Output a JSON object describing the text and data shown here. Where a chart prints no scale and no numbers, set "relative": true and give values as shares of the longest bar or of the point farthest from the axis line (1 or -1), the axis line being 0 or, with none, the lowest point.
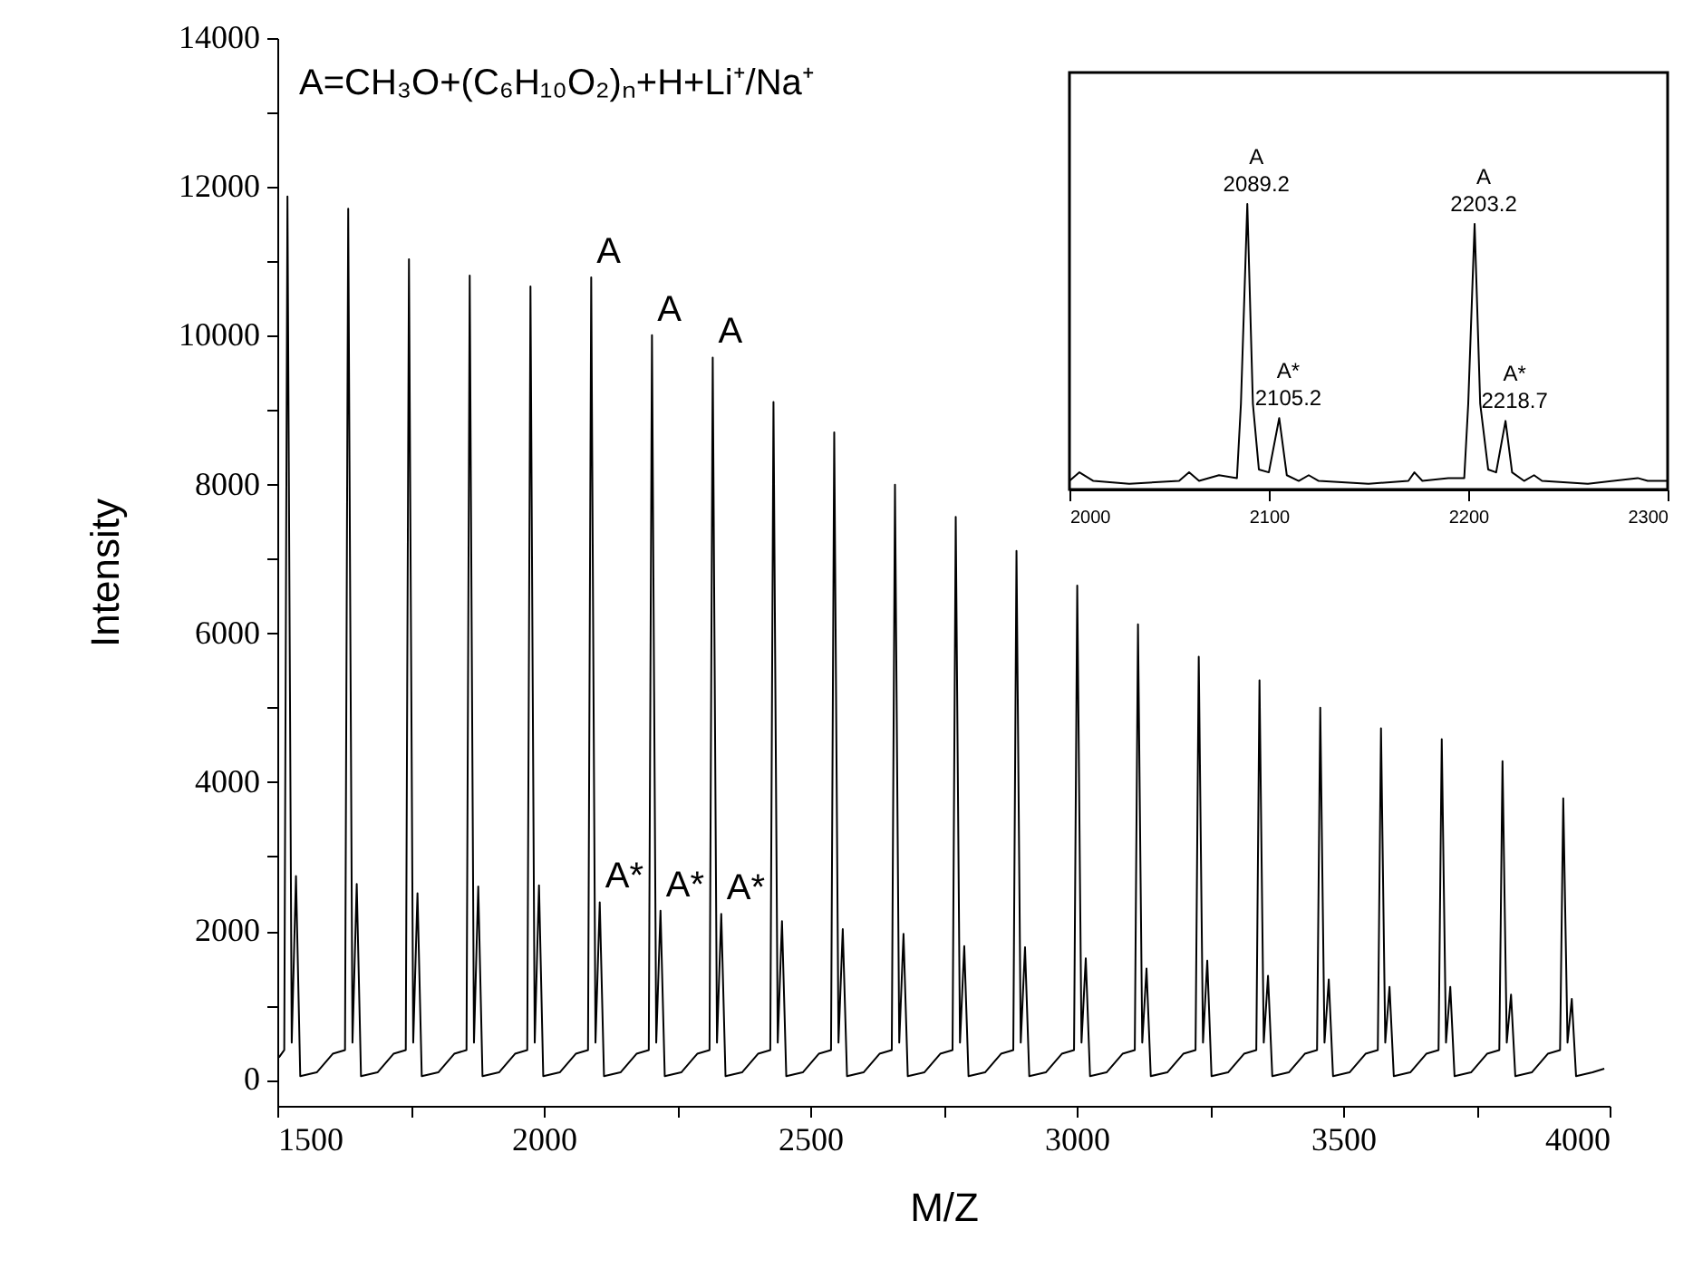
{
  "chart_data": [
    {
      "type": "line",
      "xlabel": "M/Z",
      "ylabel": "Intensity",
      "xlim": [
        1500,
        4000
      ],
      "ylim": [
        -350,
        14000
      ],
      "xticks": [
        1500,
        {
          "value": 1750,
          "label": null
        },
        2000,
        {
          "value": 2250,
          "label": null
        },
        2500,
        {
          "value": 2750,
          "label": null
        },
        3000,
        {
          "value": 3250,
          "label": null
        },
        3500,
        {
          "value": 3750,
          "label": null
        },
        4000
      ],
      "yticks": [
        0,
        {
          "value": 1000,
          "label": null
        },
        2000,
        {
          "value": 3000,
          "label": null
        },
        4000,
        {
          "value": 5000,
          "label": null
        },
        6000,
        {
          "value": 7000,
          "label": null
        },
        8000,
        {
          "value": 9000,
          "label": null
        },
        10000,
        {
          "value": 11000,
          "label": null
        },
        12000,
        {
          "value": 13000,
          "label": null
        },
        14000
      ],
      "x": [
        1503,
        1513,
        1519,
        1527,
        1535,
        1543,
        1574,
        1604,
        1627,
        1633,
        1641,
        1649,
        1657,
        1688,
        1718,
        1741,
        1747,
        1755,
        1763,
        1771,
        1802,
        1832,
        1855,
        1861,
        1869,
        1877,
        1885,
        1916,
        1946,
        1969,
        1975,
        1983,
        1991,
        1999,
        2030,
        2060,
        2083,
        2089,
        2097,
        2105,
        2113,
        2144,
        2174,
        2197,
        2203,
        2211,
        2219,
        2227,
        2258,
        2288,
        2311,
        2317,
        2325,
        2333,
        2341,
        2372,
        2402,
        2425,
        2431,
        2439,
        2447,
        2455,
        2486,
        2516,
        2539,
        2545,
        2553,
        2561,
        2569,
        2600,
        2630,
        2653,
        2659,
        2667,
        2675,
        2683,
        2714,
        2744,
        2767,
        2773,
        2781,
        2789,
        2797,
        2828,
        2858,
        2881,
        2887,
        2895,
        2903,
        2911,
        2942,
        2972,
        2995,
        3001,
        3009,
        3017,
        3025,
        3056,
        3086,
        3109,
        3115,
        3123,
        3131,
        3139,
        3170,
        3200,
        3223,
        3229,
        3237,
        3245,
        3253,
        3284,
        3314,
        3337,
        3343,
        3351,
        3359,
        3367,
        3398,
        3428,
        3451,
        3457,
        3465,
        3473,
        3481,
        3512,
        3542,
        3565,
        3571,
        3579,
        3587,
        3595,
        3626,
        3656,
        3679,
        3685,
        3693,
        3701,
        3709,
        3740,
        3770,
        3793,
        3799,
        3807,
        3815,
        3823,
        3854,
        3884,
        3907,
        3913,
        3921,
        3929,
        3937,
        3968,
        3990
      ],
      "series": [
        {
          "color": "#000000",
          "values": [
            300,
            400,
            11870,
            500,
            2737,
            50,
            100,
            350,
            400,
            11707,
            500,
            2630,
            50,
            100,
            350,
            400,
            11029,
            500,
            2507,
            50,
            100,
            350,
            400,
            10809,
            500,
            2598,
            50,
            100,
            350,
            400,
            10662,
            500,
            2614,
            50,
            100,
            350,
            400,
            10784,
            500,
            2386,
            50,
            100,
            350,
            400,
            10008,
            500,
            2271,
            50,
            100,
            350,
            400,
            9706,
            500,
            2230,
            50,
            100,
            350,
            400,
            9110,
            500,
            2132,
            50,
            100,
            350,
            400,
            8701,
            500,
            2026,
            50,
            100,
            350,
            400,
            7998,
            500,
            1961,
            50,
            100,
            350,
            400,
            7566,
            500,
            1797,
            50,
            100,
            350,
            400,
            7108,
            500,
            1781,
            50,
            100,
            350,
            400,
            6642,
            500,
            1634,
            50,
            100,
            350,
            400,
            6120,
            500,
            1495,
            50,
            100,
            350,
            400,
            5686,
            500,
            1601,
            50,
            100,
            350,
            400,
            5368,
            500,
            1397,
            50,
            100,
            350,
            400,
            5000,
            500,
            1348,
            50,
            100,
            350,
            400,
            4723,
            500,
            1250,
            50,
            100,
            350,
            400,
            4576,
            500,
            1250,
            50,
            100,
            350,
            400,
            4282,
            500,
            1144,
            50,
            100,
            350,
            400,
            3782,
            500,
            1086,
            50,
            100,
            150
          ]
        }
      ],
      "annotations": [
        "A=CH₃O+(C₆H₁₀O₂)ₙ+H+Li⁺/Na⁺",
        {
          "text": "A",
          "x": 2089,
          "y": 10784
        },
        {
          "text": "A",
          "x": 2203,
          "y": 10008
        },
        {
          "text": "A",
          "x": 2317,
          "y": 9706
        },
        {
          "text": "A*",
          "x": 2105,
          "y": 2386
        },
        {
          "text": "A*",
          "x": 2219,
          "y": 2271
        },
        {
          "text": "A*",
          "x": 2333,
          "y": 2230
        }
      ]
    },
    {
      "type": "line",
      "relative": true,
      "xlim": [
        2000,
        2300
      ],
      "xticks": [
        2000,
        2100,
        2200,
        2300
      ],
      "x": [
        2000,
        2005,
        2012,
        2030,
        2055,
        2060,
        2065,
        2075,
        2084,
        2086,
        2089.2,
        2092,
        2095,
        2100,
        2105.2,
        2109,
        2115,
        2120,
        2125,
        2150,
        2170,
        2173,
        2177,
        2190,
        2198,
        2200,
        2203.2,
        2206,
        2210,
        2214,
        2218.7,
        2222,
        2228,
        2233,
        2237,
        2260,
        2285,
        2290,
        2300
      ],
      "series": [
        {
          "color": "#000000",
          "values": [
            0.03,
            0.06,
            0.03,
            0.02,
            0.03,
            0.06,
            0.03,
            0.05,
            0.04,
            0.3,
            1,
            0.3,
            0.07,
            0.06,
            0.25,
            0.05,
            0.03,
            0.05,
            0.03,
            0.02,
            0.03,
            0.06,
            0.03,
            0.04,
            0.04,
            0.3,
            0.93,
            0.3,
            0.07,
            0.06,
            0.24,
            0.06,
            0.03,
            0.05,
            0.03,
            0.02,
            0.04,
            0.03,
            0.03
          ]
        }
      ],
      "annotations": [
        {
          "text": "A",
          "x": 2089.2,
          "y": 1
        },
        {
          "text": "2089.2",
          "x": 2089.2,
          "y": 1
        },
        {
          "text": "A*",
          "x": 2105.2,
          "y": 0.25
        },
        {
          "text": "2105.2",
          "x": 2105.2,
          "y": 0.25
        },
        {
          "text": "A",
          "x": 2203.2,
          "y": 0.93
        },
        {
          "text": "2203.2",
          "x": 2203.2,
          "y": 0.93
        },
        {
          "text": "A*",
          "x": 2218.7,
          "y": 0.24
        },
        {
          "text": "2218.7",
          "x": 2218.7,
          "y": 0.24
        }
      ]
    }
  ]
}
